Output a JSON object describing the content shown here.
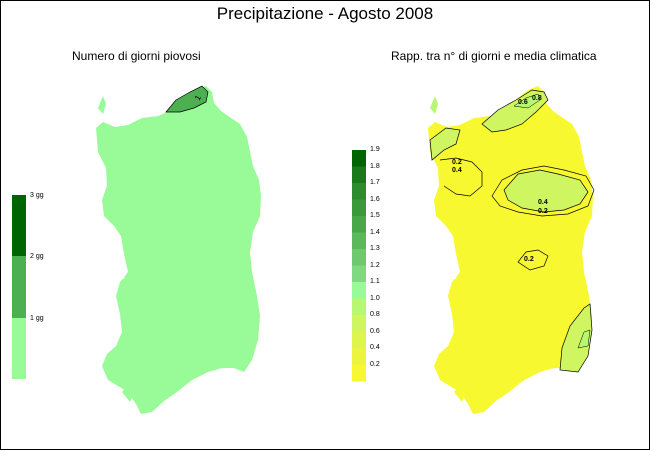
{
  "title": "Precipitazione - Agosto 2008",
  "left_panel": {
    "title": "Numero di giorni piovosi",
    "legend": [
      {
        "label": "3 gg",
        "color": "#006400"
      },
      {
        "label": "2 gg",
        "color": "#4caf50"
      },
      {
        "label": "1 gg",
        "color": "#98fb98"
      },
      {
        "label": "",
        "color": "#98fb98"
      }
    ],
    "contour_labels": [
      "1"
    ]
  },
  "right_panel": {
    "title": "Rapp. tra n° di giorni e media climatica",
    "legend": [
      {
        "label": "1.9",
        "color": "#006400"
      },
      {
        "label": "1.8",
        "color": "#1a7a1a"
      },
      {
        "label": "1.7",
        "color": "#2e8b2e"
      },
      {
        "label": "1.6",
        "color": "#3a9a3a"
      },
      {
        "label": "1.5",
        "color": "#48a848"
      },
      {
        "label": "1.4",
        "color": "#5cb85c"
      },
      {
        "label": "1.3",
        "color": "#6ec86e"
      },
      {
        "label": "1.2",
        "color": "#80d880"
      },
      {
        "label": "1.1",
        "color": "#98fb98"
      },
      {
        "label": "1.0",
        "color": "#b8f870"
      },
      {
        "label": "0.8",
        "color": "#cff560"
      },
      {
        "label": "0.6",
        "color": "#def550"
      },
      {
        "label": "0.4",
        "color": "#ecf440"
      },
      {
        "label": "0.2",
        "color": "#f8f830"
      }
    ],
    "contour_labels": [
      "0.6",
      "0.8",
      "0.2",
      "0.4",
      "0.4",
      "0.2",
      "0.2"
    ]
  },
  "colors": {
    "land_left": "#98fb98",
    "land_right": "#f8f830",
    "mid_green": "#4caf50",
    "pale_green": "#cff560"
  }
}
